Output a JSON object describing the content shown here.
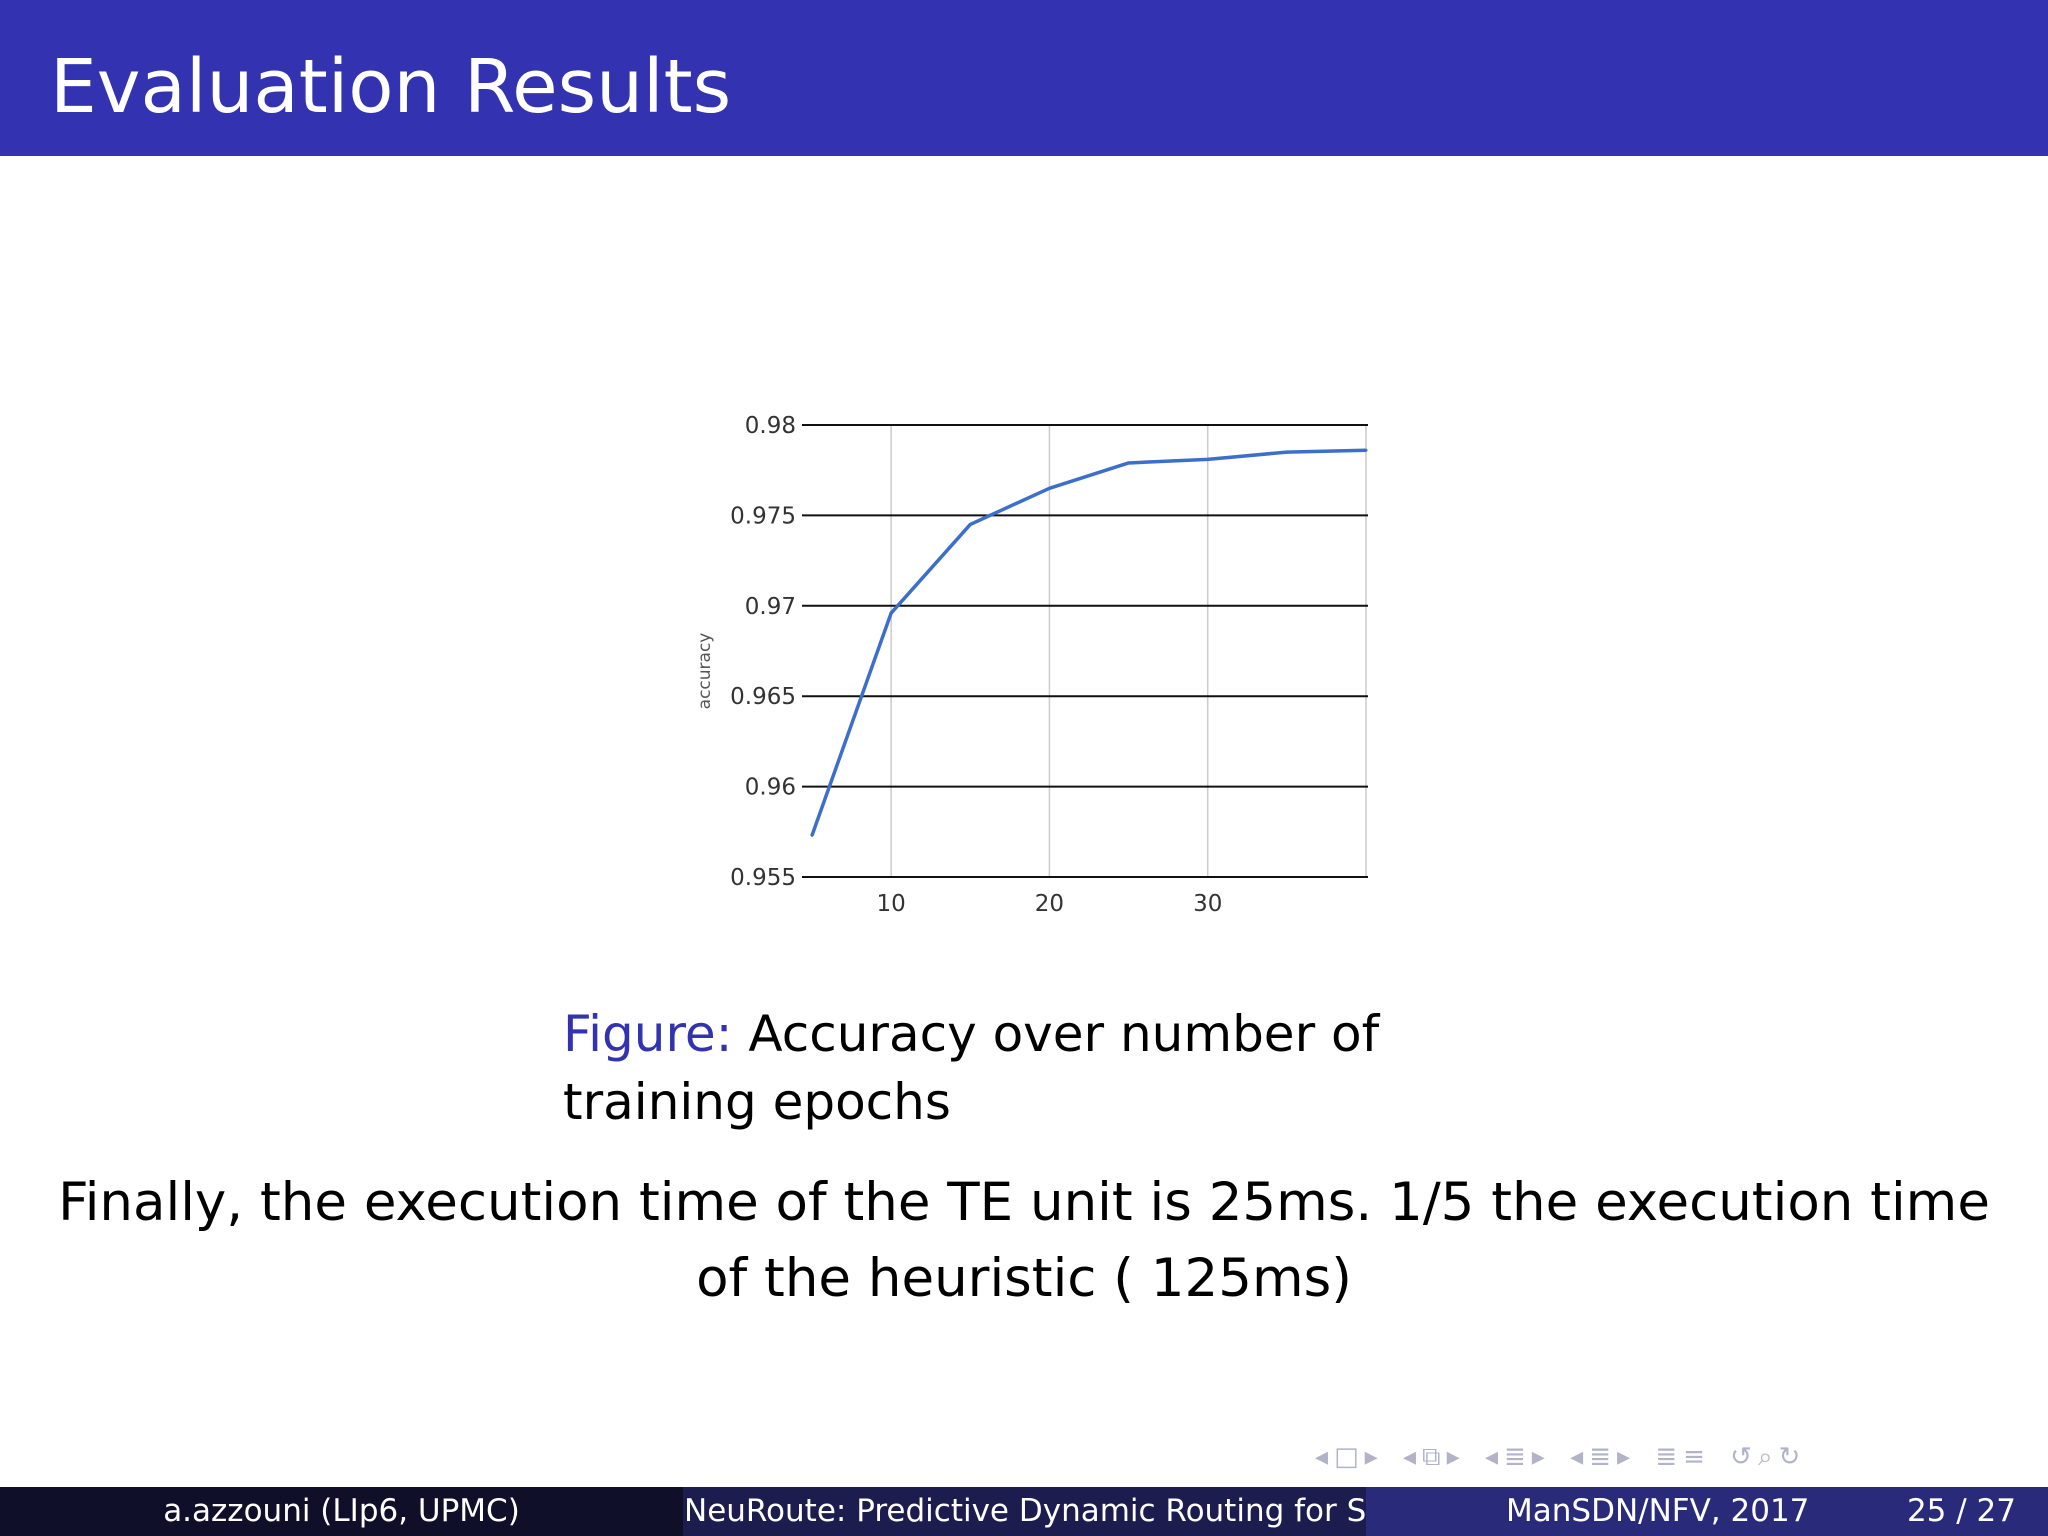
{
  "slide": {
    "title": "Evaluation Results",
    "caption_label": "Figure:",
    "caption_text": "Accuracy over number of training epochs",
    "body_line1": "Finally, the execution time of the TE unit is 25ms. 1/5 the execution time",
    "body_line2": "of the heuristic ( 125ms)"
  },
  "footer": {
    "author": "a.azzouni  (LIp6, UPMC)",
    "talk_title": "NeuRoute: Predictive Dynamic Routing for So",
    "event": "ManSDN/NFV, 2017",
    "page": "25 / 27"
  },
  "nav_icons": [
    "arrow-left-icon",
    "frame-icon",
    "arrow-right-icon",
    "arrow-left-icon",
    "subsection-icon",
    "arrow-right-icon",
    "arrow-left-icon",
    "section-icon",
    "arrow-right-icon",
    "arrow-left-icon",
    "section-icon",
    "arrow-right-icon",
    "toc-icon",
    "align-icon",
    "undo-icon",
    "search-back-icon",
    "search-forward-icon"
  ],
  "colors": {
    "header_bg": "#3333b2",
    "line": "#3c6fc9",
    "caption_label": "#3333b2"
  },
  "chart_data": {
    "type": "line",
    "title": "",
    "xlabel": "",
    "ylabel": "accuracy",
    "xlim": [
      5,
      40
    ],
    "ylim": [
      0.955,
      0.98
    ],
    "xticks": [
      10,
      20,
      30
    ],
    "yticks": [
      0.955,
      0.96,
      0.965,
      0.97,
      0.975,
      0.98
    ],
    "ytick_labels": [
      "0.955",
      "0.96",
      "0.965",
      "0.97",
      "0.975",
      "0.98"
    ],
    "grid": true,
    "series": [
      {
        "x": [
          5,
          10,
          15,
          20,
          25,
          30,
          35,
          40
        ],
        "y": [
          0.9573,
          0.9696,
          0.9745,
          0.9765,
          0.9779,
          0.9781,
          0.9785,
          0.9786
        ]
      }
    ]
  }
}
